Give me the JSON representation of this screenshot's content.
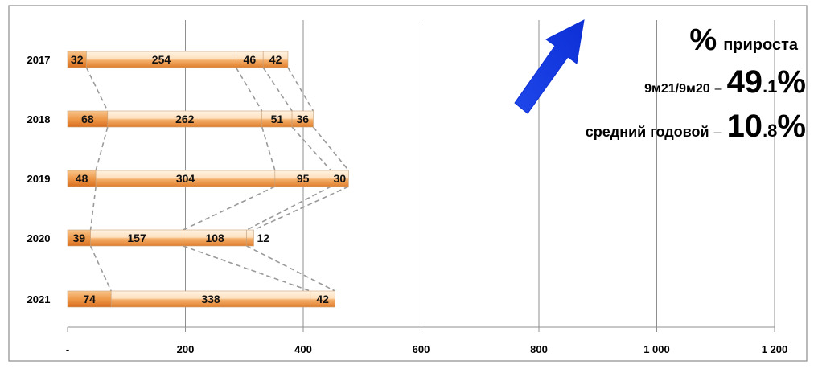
{
  "chart_data": {
    "type": "bar",
    "orientation": "horizontal",
    "stacked": true,
    "categories": [
      "2017",
      "2018",
      "2019",
      "2020",
      "2021"
    ],
    "series": [
      {
        "values": [
          32,
          68,
          48,
          39,
          74
        ]
      },
      {
        "values": [
          254,
          262,
          304,
          157,
          338
        ]
      },
      {
        "values": [
          46,
          51,
          95,
          108,
          42
        ]
      },
      {
        "values": [
          42,
          36,
          30,
          12,
          null
        ]
      }
    ],
    "xlim": [
      0,
      1200
    ],
    "x_ticks": [
      0,
      200,
      400,
      600,
      800,
      1000,
      1200
    ],
    "x_tick_labels": [
      "-",
      "200",
      "400",
      "600",
      "800",
      "1 000",
      "1 200"
    ],
    "grid": "vertical",
    "colors": {
      "bar_dark": "#e8893a",
      "bar_light": "#fde3c6",
      "arrow": "#1a3fe0",
      "highlight": "#1a1ae0"
    }
  },
  "annotation": {
    "title_symbol": "%",
    "title_text": "прироста",
    "row1_label": "9м21/9м20",
    "row1_dash": "–",
    "row1_value_int": "49",
    "row1_value_dec": ".1",
    "row1_value_pct": "%",
    "row2_label": "средний годовой",
    "row2_dash": "–",
    "row2_value_int": "10",
    "row2_value_dec": ".8",
    "row2_value_pct": "%",
    "arrow_icon": "up-right-arrow-icon"
  }
}
